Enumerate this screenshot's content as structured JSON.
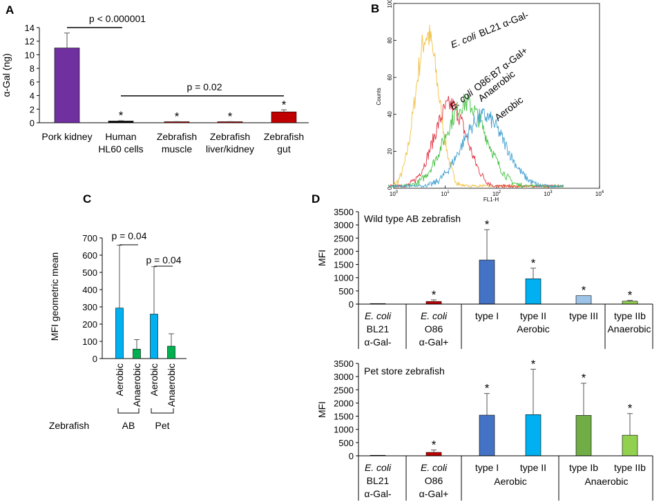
{
  "colors": {
    "purple": "#7030a0",
    "red": "#c00000",
    "black": "#000000",
    "blue": "#4472c4",
    "cyan": "#00b0f0",
    "lightblue": "#9dc3e6",
    "green": "#00b050",
    "olive": "#70ad47",
    "lightgreen": "#92d050",
    "facs_yellow": "#f0c040",
    "facs_red": "#e03040",
    "facs_green": "#40c040",
    "facs_blue": "#40a0d0"
  },
  "chart_data": [
    {
      "panel": "A",
      "type": "bar",
      "ylabel": "α-Gal (ng)",
      "ylim": [
        0,
        14
      ],
      "yticks": [
        0,
        2,
        4,
        6,
        8,
        10,
        12,
        14
      ],
      "categories": [
        "Pork kidney",
        "Human HL60 cells",
        "Zebrafish muscle",
        "Zebrafish liver/kidney",
        "Zebrafish gut"
      ],
      "category_lines": [
        [
          "Pork kidney"
        ],
        [
          "Human",
          "HL60 cells"
        ],
        [
          "Zebrafish",
          "muscle"
        ],
        [
          "Zebrafish",
          "liver/kidney"
        ],
        [
          "Zebrafish",
          "gut"
        ]
      ],
      "values": [
        11.0,
        0.25,
        0.15,
        0.15,
        1.6
      ],
      "errors": [
        2.2,
        0.05,
        0.02,
        0.02,
        0.3
      ],
      "colors": [
        "purple",
        "black",
        "red",
        "red",
        "red"
      ],
      "stars": [
        false,
        true,
        true,
        true,
        true
      ],
      "annotations": [
        "p < 0.000001",
        "p = 0.02"
      ]
    },
    {
      "panel": "B",
      "type": "histogram",
      "xlabel": "FL1-H",
      "ylabel": "Counts",
      "ylim": [
        0,
        100
      ],
      "yticks": [
        "0",
        "20",
        "40",
        "60",
        "80",
        "100"
      ],
      "xticks": [
        {
          "base": "10",
          "exp": "0"
        },
        {
          "base": "10",
          "exp": "1"
        },
        {
          "base": "10",
          "exp": "2"
        },
        {
          "base": "10",
          "exp": "3"
        },
        {
          "base": "10",
          "exp": "4"
        }
      ],
      "series": [
        {
          "name": "E. coli BL21 α-Gal-",
          "color": "facs_yellow",
          "peak_x": 0.65,
          "peak_y": 83,
          "sd": 0.23
        },
        {
          "name": "E. coli O86:B7 α-Gal+",
          "color": "facs_red",
          "peak_x": 1.1,
          "peak_y": 45,
          "sd": 0.32
        },
        {
          "name": "Anaerobic",
          "color": "facs_green",
          "peak_x": 1.4,
          "peak_y": 46,
          "sd": 0.4
        },
        {
          "name": "Aerobic",
          "color": "facs_blue",
          "peak_x": 1.75,
          "peak_y": 39,
          "sd": 0.42
        }
      ],
      "labels": {
        "bl21_italic": "E. coli",
        "bl21_rest": "BL21 α-Gal-",
        "o86_italic": "E. coli",
        "o86_rest": "O86:B7 α-Gal+",
        "anaerobic": "Anaerobic",
        "aerobic": "Aerobic"
      }
    },
    {
      "panel": "C",
      "type": "bar",
      "ylabel": "MFI geometric mean",
      "ylim": [
        0,
        700
      ],
      "yticks": [
        0,
        100,
        200,
        300,
        400,
        500,
        600,
        700
      ],
      "categories": [
        "Aerobic",
        "Anaerobic",
        "Aerobic",
        "Anaerobic"
      ],
      "groups": [
        "AB",
        "Pet"
      ],
      "group_label": "Zebrafish",
      "values": [
        293,
        55,
        258,
        72
      ],
      "errors": [
        365,
        55,
        275,
        72
      ],
      "colors": [
        "cyan",
        "green",
        "cyan",
        "green"
      ],
      "annotations": [
        "p = 0.04",
        "p = 0.04"
      ]
    },
    {
      "panel": "D",
      "type": "bar",
      "title": "Wild type AB zebrafish",
      "ylabel": "MFI",
      "ylim": [
        0,
        3500
      ],
      "yticks": [
        0,
        500,
        1000,
        1500,
        2000,
        2500,
        3000,
        3500
      ],
      "categories": [
        "E. coli BL21 α-Gal-",
        "E. coli O86 α-Gal+",
        "type I",
        "type II",
        "type III",
        "type IIb"
      ],
      "values": [
        20,
        100,
        1670,
        960,
        320,
        110
      ],
      "errors": [
        0,
        60,
        1150,
        400,
        0,
        30
      ],
      "colors": [
        "black",
        "red",
        "blue",
        "cyan",
        "lightblue",
        "lightgreen"
      ],
      "stars": [
        false,
        true,
        true,
        true,
        true,
        true
      ],
      "group_labels": [
        "Aerobic",
        "Anaerobic"
      ]
    },
    {
      "panel": "D",
      "type": "bar",
      "title": "Pet store zebrafish",
      "ylabel": "MFI",
      "ylim": [
        0,
        3500
      ],
      "yticks": [
        0,
        500,
        1000,
        1500,
        2000,
        2500,
        3000,
        3500
      ],
      "categories": [
        "E. coli BL21 α-Gal-",
        "E. coli O86 α-Gal+",
        "type I",
        "type II",
        "type Ib",
        "type IIb"
      ],
      "values": [
        20,
        130,
        1540,
        1560,
        1530,
        780
      ],
      "errors": [
        0,
        90,
        820,
        1720,
        1220,
        820
      ],
      "colors": [
        "black",
        "red",
        "blue",
        "cyan",
        "olive",
        "lightgreen"
      ],
      "stars": [
        false,
        true,
        true,
        true,
        true,
        true
      ],
      "group_labels": [
        "Aerobic",
        "Anaerobic"
      ]
    }
  ],
  "cat_text": {
    "ecoli": "E. coli",
    "bl21": "BL21",
    "agal_minus": "α-Gal-",
    "o86": "O86",
    "agal_plus": "α-Gal+",
    "type1": "type I",
    "type2": "type II",
    "type3": "type III",
    "type2b": "type IIb",
    "type1b": "type Ib",
    "aerobic": "Aerobic",
    "anaerobic": "Anaerobic"
  },
  "star": "*"
}
